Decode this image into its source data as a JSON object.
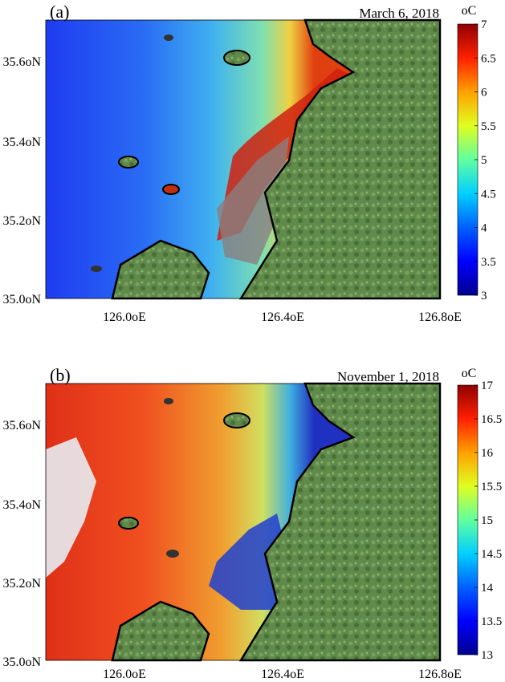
{
  "panels": [
    {
      "label": "(a)",
      "date": "March 6, 2018",
      "unit": "oC",
      "colorbar_ticks": [
        "7",
        "6.5",
        "6",
        "5.5",
        "5",
        "4.5",
        "4",
        "3.5",
        "3"
      ],
      "colorbar_range": [
        3,
        7
      ],
      "lat_ticks": [
        "35.6oN",
        "35.4oN",
        "35.2oN",
        "35.0oN"
      ],
      "lon_ticks": [
        "126.0oE",
        "126.4oE",
        "126.8oE"
      ]
    },
    {
      "label": "(b)",
      "date": "November 1, 2018",
      "unit": "oC",
      "colorbar_ticks": [
        "17",
        "16.5",
        "16",
        "15.5",
        "15",
        "14.5",
        "14",
        "13.5",
        "13"
      ],
      "colorbar_range": [
        13,
        17
      ],
      "lat_ticks": [
        "35.6oN",
        "35.4oN",
        "35.2oN",
        "35.0oN"
      ],
      "lon_ticks": [
        "126.0oE",
        "126.4oE",
        "126.8oE"
      ]
    }
  ],
  "colors": {
    "colormap": [
      "#00008f",
      "#0000ff",
      "#0080ff",
      "#00ffff",
      "#80ff80",
      "#ffff00",
      "#ff8000",
      "#ff0000",
      "#800000"
    ],
    "land": "#5f8a4a",
    "coastline": "#000000",
    "tidal_flat": "#8a7f80"
  }
}
